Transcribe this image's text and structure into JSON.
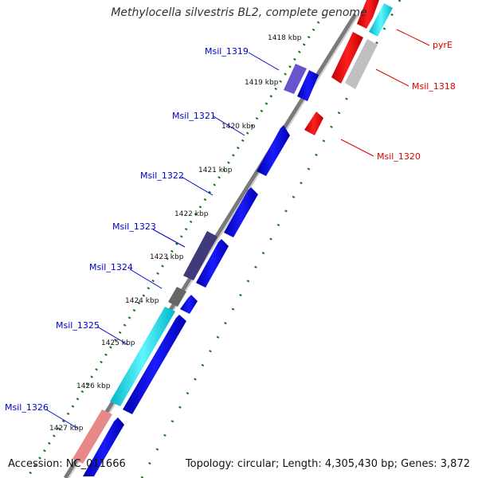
{
  "title": "Methylocella silvestris BL2, complete genome",
  "footer": {
    "accession": "Accession: NC_011666",
    "topology": "Topology: circular; Length: 4,305,430 bp; Genes: 3,872"
  },
  "kbp_labels": [
    "1418 kbp",
    "1419 kbp",
    "1420 kbp",
    "1421 kbp",
    "1422 kbp",
    "1423 kbp",
    "1424 kbp",
    "1425 kbp",
    "1426 kbp",
    "1427 kbp"
  ],
  "genes_left": [
    {
      "name": "Msil_1319"
    },
    {
      "name": "Msil_1321"
    },
    {
      "name": "Msil_1322"
    },
    {
      "name": "Msil_1323"
    },
    {
      "name": "Msil_1324"
    },
    {
      "name": "Msil_1325"
    },
    {
      "name": "Msil_1326"
    }
  ],
  "genes_right": [
    {
      "name": "pyrE"
    },
    {
      "name": "Msil_1318"
    },
    {
      "name": "Msil_1320"
    }
  ],
  "colors": {
    "forward_label": "#0000cc",
    "reverse_label": "#dd0000",
    "blue": "#0000ee",
    "red": "#ee0000",
    "cyan": "#00e5f0",
    "purple": "#6655cc",
    "dark_purple": "#3f3a7a",
    "gray": "#666666",
    "light_gray": "#c0c0c0",
    "pink": "#e88888",
    "tick_green": "#117711"
  }
}
